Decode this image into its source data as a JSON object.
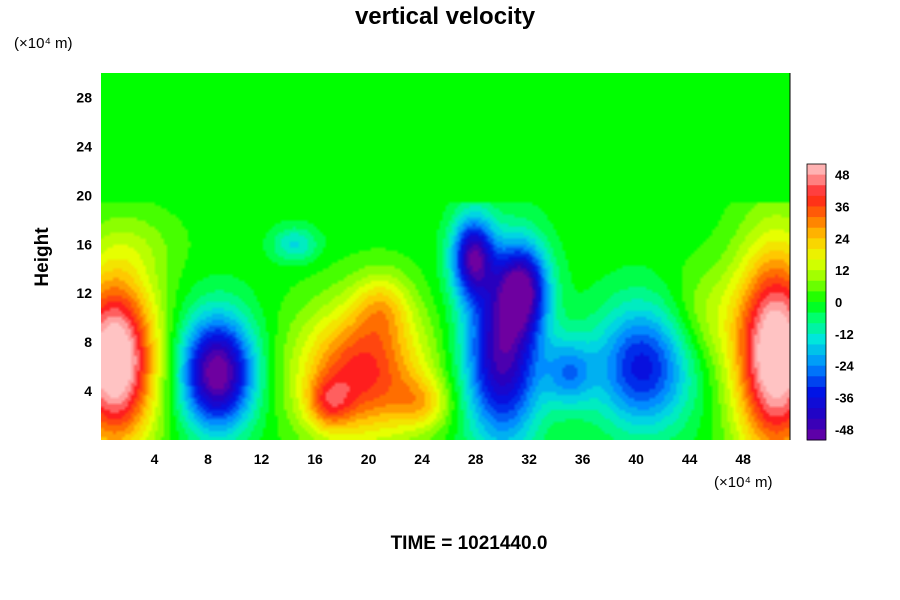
{
  "title": "vertical velocity",
  "footer": "TIME = 1021440.0",
  "chart_data": {
    "type": "heatmap",
    "title": "vertical velocity",
    "ylabel": "Height",
    "y_unit": "(×10⁴ m)",
    "x_unit": "(×10⁴ m)",
    "xlim": [
      0,
      51.5
    ],
    "ylim": [
      0,
      30
    ],
    "x_ticks": [
      4,
      8,
      12,
      16,
      20,
      24,
      28,
      32,
      36,
      40,
      44,
      48
    ],
    "y_ticks": [
      4,
      8,
      12,
      16,
      20,
      24,
      28
    ],
    "colorbar": {
      "levels": [
        48,
        36,
        24,
        12,
        0,
        -12,
        -24,
        -36,
        -48
      ],
      "range": [
        -52,
        52
      ]
    },
    "background_value": 0,
    "features": [
      {
        "x": 1.0,
        "y": 6.5,
        "sx": 2.2,
        "sy": 5.0,
        "amp": 60
      },
      {
        "x": 50.5,
        "y": 7.0,
        "sx": 2.2,
        "sy": 6.0,
        "amp": 60
      },
      {
        "x": 19.5,
        "y": 5.5,
        "sx": 3.3,
        "sy": 3.8,
        "amp": 40
      },
      {
        "x": 17.0,
        "y": 3.0,
        "sx": 1.2,
        "sy": 1.5,
        "amp": 18
      },
      {
        "x": 21.0,
        "y": 11.0,
        "sx": 1.5,
        "sy": 2.0,
        "amp": 15
      },
      {
        "x": 8.7,
        "y": 5.5,
        "sx": 1.9,
        "sy": 3.2,
        "amp": -55
      },
      {
        "x": 30.0,
        "y": 7.0,
        "sx": 2.0,
        "sy": 5.0,
        "amp": -48
      },
      {
        "x": 27.8,
        "y": 15.0,
        "sx": 1.1,
        "sy": 2.3,
        "amp": -44
      },
      {
        "x": 31.5,
        "y": 12.5,
        "sx": 1.3,
        "sy": 2.5,
        "amp": -40
      },
      {
        "x": 40.5,
        "y": 6.0,
        "sx": 2.5,
        "sy": 3.5,
        "amp": -36
      },
      {
        "x": 35.0,
        "y": 5.5,
        "sx": 1.3,
        "sy": 2.0,
        "amp": -22
      },
      {
        "x": 14.5,
        "y": 16.0,
        "sx": 1.2,
        "sy": 1.0,
        "amp": -15
      },
      {
        "x": 24.0,
        "y": 3.0,
        "sx": 1.5,
        "sy": 1.5,
        "amp": 15
      },
      {
        "x": 45.0,
        "y": 10.0,
        "sx": 2.0,
        "sy": 3.0,
        "amp": 10
      },
      {
        "x": 3.0,
        "y": 16.0,
        "sx": 2.5,
        "sy": 2.0,
        "amp": 5
      }
    ],
    "grid": false
  }
}
